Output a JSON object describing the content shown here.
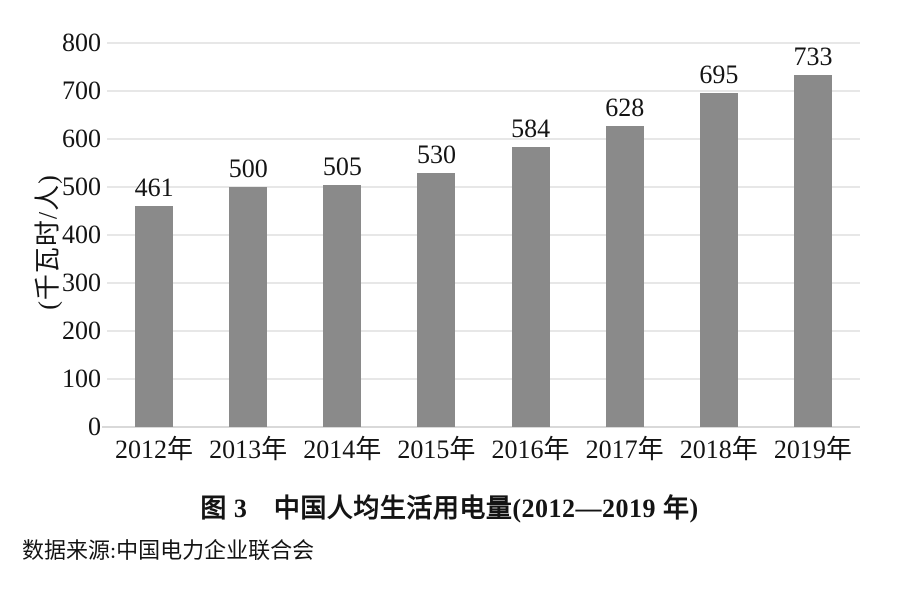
{
  "chart_data": {
    "type": "bar",
    "title": "图 3　中国人均生活用电量(2012—2019 年)",
    "categories": [
      "2012年",
      "2013年",
      "2014年",
      "2015年",
      "2016年",
      "2017年",
      "2018年",
      "2019年"
    ],
    "values": [
      461,
      500,
      505,
      530,
      584,
      628,
      695,
      733
    ],
    "ylabel": "(千瓦时/人)",
    "yticks": [
      0,
      100,
      200,
      300,
      400,
      500,
      600,
      700,
      800
    ],
    "ylim": [
      0,
      800
    ],
    "legend": "none",
    "grid": "horizontal",
    "bar_color": "#8a8a8a",
    "grid_color": "#e7e7e7",
    "baseline_color": "#d9d9d9",
    "text_color": "#141414"
  },
  "source_note": "数据来源:中国电力企业联合会"
}
